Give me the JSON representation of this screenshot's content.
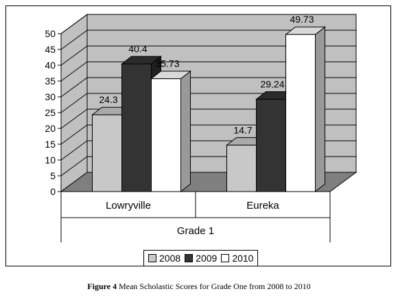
{
  "chart_data": {
    "type": "bar",
    "categories": [
      "Lowryville",
      "Eureka"
    ],
    "group_label": "Grade 1",
    "series": [
      {
        "name": "2008",
        "values": [
          24.3,
          14.7
        ],
        "color": "#c8c8c8"
      },
      {
        "name": "2009",
        "values": [
          40.4,
          29.24
        ],
        "color": "#333333"
      },
      {
        "name": "2010",
        "values": [
          35.73,
          49.73
        ],
        "color": "#ffffff"
      }
    ],
    "data_labels": [
      [
        "24.3",
        "14.7"
      ],
      [
        "40.4",
        "29.24"
      ],
      [
        "35.73",
        "49.73"
      ]
    ],
    "ylim": [
      0,
      50
    ],
    "yticks": [
      0,
      5,
      10,
      15,
      20,
      25,
      30,
      35,
      40,
      45,
      50
    ],
    "grid": true,
    "legend_position": "bottom",
    "style": "3d"
  },
  "caption": {
    "label": "Figure 4",
    "text": "Mean Scholastic Scores for Grade One from 2008 to 2010"
  }
}
